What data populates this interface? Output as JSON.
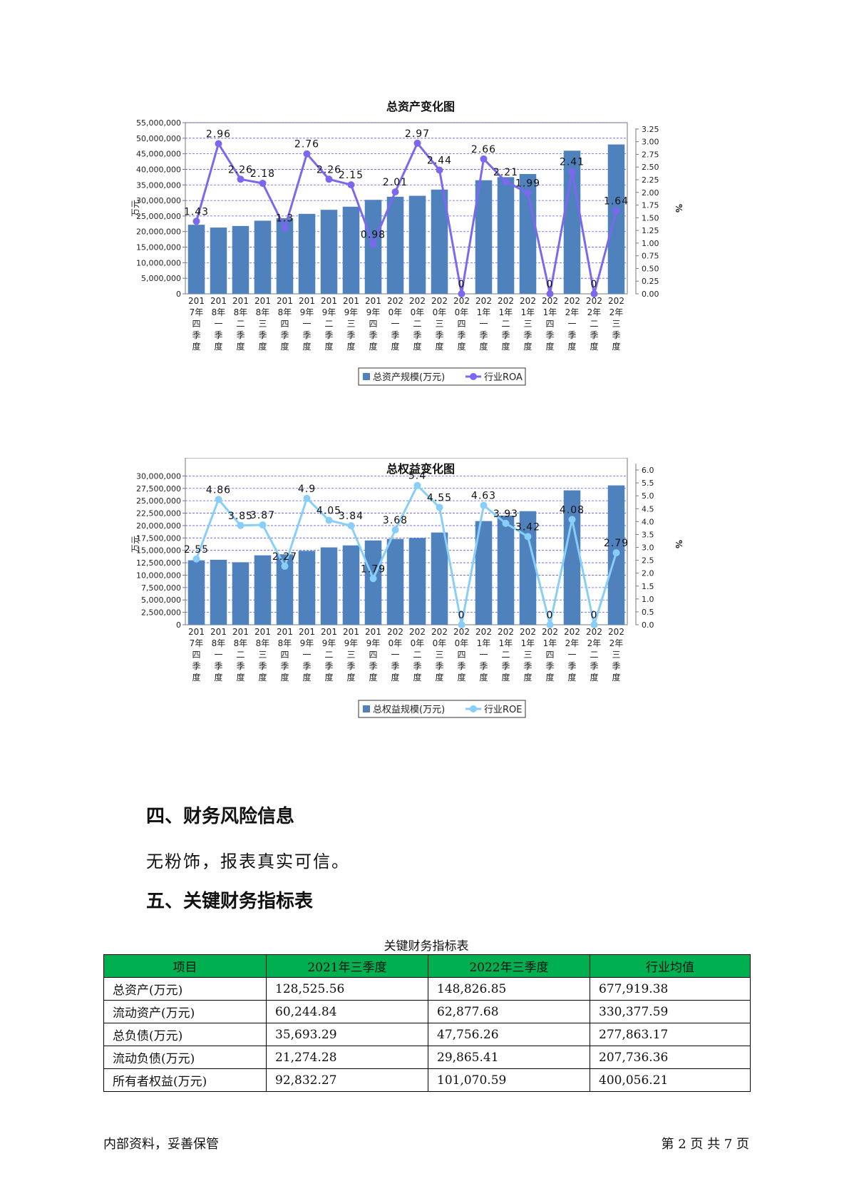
{
  "charts_text": {
    "assets_title": "总资产变化图",
    "equity_title": "总权益变化图"
  },
  "chart_data": [
    {
      "type": "bar",
      "title": "总资产变化图",
      "ylabel": "万元",
      "y2label": "%",
      "ylim": [
        0,
        55000000
      ],
      "y2lim": [
        0,
        3.375
      ],
      "yticks": [
        "55,000,000",
        "50,000,000",
        "45,000,000",
        "40,000,000",
        "35,000,000",
        "30,000,000",
        "25,000,000",
        "20,000,000",
        "15,000,000",
        "10,000,000",
        "5,000,000",
        "0"
      ],
      "y2ticks": [
        "3.25",
        "3.00",
        "2.75",
        "2.50",
        "2.25",
        "2.00",
        "1.75",
        "1.50",
        "1.25",
        "1.00",
        "0.75",
        "0.50",
        "0.25",
        "0.00"
      ],
      "categories": [
        [
          "201",
          "7年",
          "四",
          "季",
          "度"
        ],
        [
          "201",
          "8年",
          "一",
          "季",
          "度"
        ],
        [
          "201",
          "8年",
          "二",
          "季",
          "度"
        ],
        [
          "201",
          "8年",
          "三",
          "季",
          "度"
        ],
        [
          "201",
          "8年",
          "四",
          "季",
          "度"
        ],
        [
          "201",
          "9年",
          "一",
          "季",
          "度"
        ],
        [
          "201",
          "9年",
          "二",
          "季",
          "度"
        ],
        [
          "201",
          "9年",
          "三",
          "季",
          "度"
        ],
        [
          "201",
          "9年",
          "四",
          "季",
          "度"
        ],
        [
          "202",
          "0年",
          "一",
          "季",
          "度"
        ],
        [
          "202",
          "0年",
          "二",
          "季",
          "度"
        ],
        [
          "202",
          "0年",
          "三",
          "季",
          "度"
        ],
        [
          "202",
          "0年",
          "四",
          "季",
          "度"
        ],
        [
          "202",
          "1年",
          "一",
          "季",
          "度"
        ],
        [
          "202",
          "1年",
          "二",
          "季",
          "度"
        ],
        [
          "202",
          "1年",
          "三",
          "季",
          "度"
        ],
        [
          "202",
          "1年",
          "四",
          "季",
          "度"
        ],
        [
          "202",
          "2年",
          "一",
          "季",
          "度"
        ],
        [
          "202",
          "2年",
          "二",
          "季",
          "度"
        ],
        [
          "202",
          "2年",
          "三",
          "季",
          "度"
        ]
      ],
      "series": [
        {
          "name": "总资产规模(万元)",
          "kind": "bar",
          "color": "#4f81bd",
          "values": [
            22200000,
            21300000,
            21800000,
            23500000,
            24300000,
            25700000,
            27000000,
            28000000,
            30200000,
            31200000,
            31500000,
            33500000,
            null,
            36500000,
            37500000,
            38500000,
            null,
            46000000,
            null,
            48000000
          ]
        },
        {
          "name": "行业ROA",
          "kind": "line",
          "color": "#7b68ee",
          "values": [
            1.43,
            2.96,
            2.26,
            2.18,
            1.3,
            2.76,
            2.26,
            2.15,
            0.98,
            2.01,
            2.97,
            2.44,
            0,
            2.66,
            2.21,
            1.99,
            0,
            2.41,
            0,
            1.64
          ],
          "labels": [
            "1.43",
            "2.96",
            "2.26",
            "2.18",
            "1.3",
            "2.76",
            "2.26",
            "2.15",
            "0.98",
            "2.01",
            "2.97",
            "2.44",
            "0",
            "2.66",
            "2.21",
            "1.99",
            "0",
            "2.41",
            "0",
            "1.64"
          ]
        }
      ],
      "legend": "bottom"
    },
    {
      "type": "bar",
      "title": "总权益变化图",
      "ylabel": "万元",
      "y2label": "%",
      "ylim": [
        0,
        32500000
      ],
      "y2lim": [
        0,
        6.25
      ],
      "yticks": [
        "30,000,000",
        "27,500,000",
        "25,000,000",
        "22,500,000",
        "20,000,000",
        "17,500,000",
        "15,000,000",
        "12,500,000",
        "10,000,000",
        "7,500,000",
        "5,000,000",
        "2,500,000",
        "0"
      ],
      "y2ticks": [
        "6.0",
        "5.5",
        "5.0",
        "4.5",
        "4.0",
        "3.5",
        "3.0",
        "2.5",
        "2.0",
        "1.5",
        "1.0",
        "0.5",
        "0.0"
      ],
      "categories": [
        [
          "201",
          "7年",
          "四",
          "季",
          "度"
        ],
        [
          "201",
          "8年",
          "一",
          "季",
          "度"
        ],
        [
          "201",
          "8年",
          "二",
          "季",
          "度"
        ],
        [
          "201",
          "8年",
          "三",
          "季",
          "度"
        ],
        [
          "201",
          "8年",
          "四",
          "季",
          "度"
        ],
        [
          "201",
          "9年",
          "一",
          "季",
          "度"
        ],
        [
          "201",
          "9年",
          "二",
          "季",
          "度"
        ],
        [
          "201",
          "9年",
          "三",
          "季",
          "度"
        ],
        [
          "201",
          "9年",
          "四",
          "季",
          "度"
        ],
        [
          "202",
          "0年",
          "一",
          "季",
          "度"
        ],
        [
          "202",
          "0年",
          "二",
          "季",
          "度"
        ],
        [
          "202",
          "0年",
          "三",
          "季",
          "度"
        ],
        [
          "202",
          "0年",
          "四",
          "季",
          "度"
        ],
        [
          "202",
          "1年",
          "一",
          "季",
          "度"
        ],
        [
          "202",
          "1年",
          "二",
          "季",
          "度"
        ],
        [
          "202",
          "1年",
          "三",
          "季",
          "度"
        ],
        [
          "202",
          "1年",
          "四",
          "季",
          "度"
        ],
        [
          "202",
          "2年",
          "一",
          "季",
          "度"
        ],
        [
          "202",
          "2年",
          "二",
          "季",
          "度"
        ],
        [
          "202",
          "2年",
          "三",
          "季",
          "度"
        ]
      ],
      "series": [
        {
          "name": "总权益规模(万元)",
          "kind": "bar",
          "color": "#4f81bd",
          "values": [
            13000000,
            13100000,
            12600000,
            14000000,
            14200000,
            14900000,
            15600000,
            16000000,
            17000000,
            17300000,
            17500000,
            18600000,
            null,
            20900000,
            22000000,
            22900000,
            null,
            27100000,
            null,
            28100000
          ]
        },
        {
          "name": "行业ROE",
          "kind": "line",
          "color": "#87cefa",
          "values": [
            2.55,
            4.86,
            3.85,
            3.87,
            2.27,
            4.9,
            4.05,
            3.84,
            1.79,
            3.68,
            5.4,
            4.55,
            0,
            4.63,
            3.93,
            3.42,
            0,
            4.08,
            0,
            2.79
          ],
          "labels": [
            "2.55",
            "4.86",
            "3.85",
            "3.87",
            "2.27",
            "4.9",
            "4.05",
            "3.84",
            "1.79",
            "3.68",
            "5.4",
            "4.55",
            "0",
            "4.63",
            "3.93",
            "3.42",
            "0",
            "4.08",
            "0",
            "2.79"
          ]
        }
      ],
      "legend": "bottom"
    }
  ],
  "section4": {
    "heading": "四、财务风险信息",
    "text": "无粉饰，报表真实可信。"
  },
  "section5": {
    "heading": "五、关键财务指标表"
  },
  "table": {
    "caption": "关键财务指标表",
    "headers": [
      "项目",
      "2021年三季度",
      "2022年三季度",
      "行业均值"
    ],
    "rows": [
      [
        "总资产(万元)",
        "128,525.56",
        "148,826.85",
        "677,919.38"
      ],
      [
        "流动资产(万元)",
        "60,244.84",
        "62,877.68",
        "330,377.59"
      ],
      [
        "总负债(万元)",
        "35,693.29",
        "47,756.26",
        "277,863.17"
      ],
      [
        "流动负债(万元)",
        "21,274.28",
        "29,865.41",
        "207,736.36"
      ],
      [
        "所有者权益(万元)",
        "92,832.27",
        "101,070.59",
        "400,056.21"
      ]
    ],
    "header_color": "#00b050"
  },
  "footer": {
    "left": "内部资料，妥善保管",
    "right": "第 2 页  共 7 页"
  }
}
